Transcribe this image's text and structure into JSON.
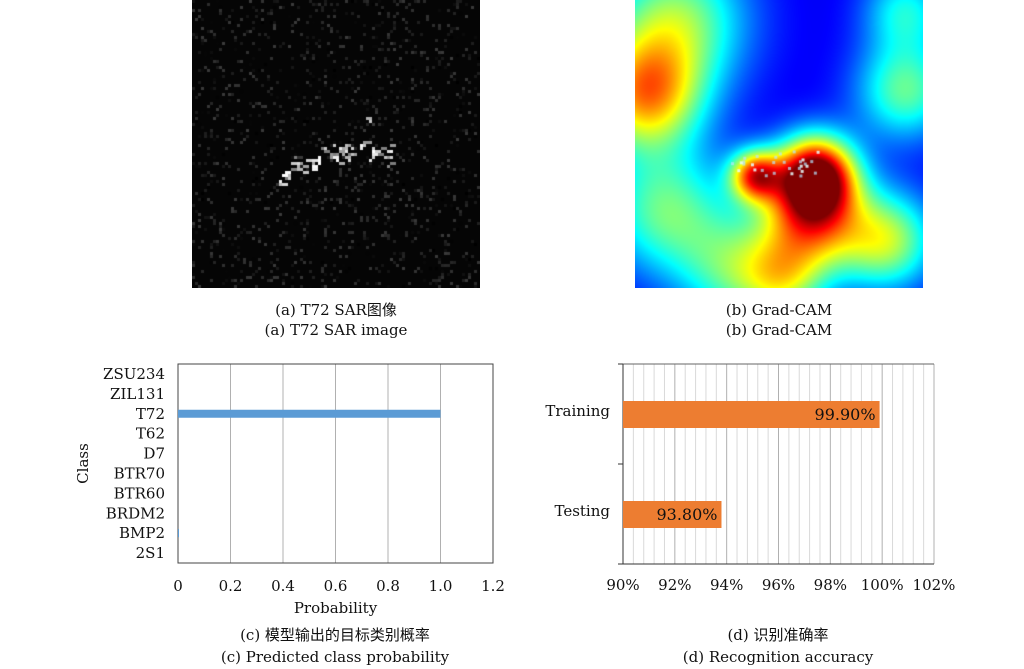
{
  "panels": {
    "a": {
      "caption_cn": "(a) T72 SAR图像",
      "caption_en": "(a) T72 SAR image"
    },
    "b": {
      "caption_cn": "(b) Grad-CAM",
      "caption_en": "(b) Grad-CAM"
    },
    "c": {
      "caption_cn": "(c) 模型输出的目标类别概率",
      "caption_en": "(c) Predicted class probability"
    },
    "d": {
      "caption_cn": "(d) 识别准确率",
      "caption_en": "(d) Recognition accuracy"
    }
  },
  "colors": {
    "prob_bar": "#5b9bd5",
    "acc_bar": "#ed7d31",
    "grid": "#b0b0b0",
    "minor_grid": "#d9d9d9"
  },
  "chart_data": [
    {
      "type": "bar",
      "orientation": "horizontal",
      "title": "",
      "xlabel": "Probability",
      "ylabel": "Class",
      "categories": [
        "ZSU234",
        "ZIL131",
        "T72",
        "T62",
        "D7",
        "BTR70",
        "BTR60",
        "BRDM2",
        "BMP2",
        "2S1"
      ],
      "values": [
        0,
        0,
        1.0,
        0,
        0,
        0,
        0,
        0,
        0.002,
        0
      ],
      "xlim": [
        0,
        1.2
      ],
      "xticks": [
        "0",
        "0.2",
        "0.4",
        "0.6",
        "0.8",
        "1.0",
        "1.2"
      ],
      "tick_values": [
        0,
        0.2,
        0.4,
        0.6,
        0.8,
        1.0,
        1.2
      ],
      "grid": true
    },
    {
      "type": "bar",
      "orientation": "horizontal",
      "title": "",
      "xlabel": "",
      "ylabel": "",
      "categories": [
        "Training",
        "Testing"
      ],
      "values": [
        99.9,
        93.8
      ],
      "data_labels": [
        "99.90%",
        "93.80%"
      ],
      "xlim": [
        90,
        102
      ],
      "xticks": [
        "90%",
        "92%",
        "94%",
        "96%",
        "98%",
        "100%",
        "102%"
      ],
      "tick_values": [
        90,
        92,
        94,
        96,
        98,
        100,
        102
      ],
      "minor_step": 0.4,
      "grid": true
    }
  ]
}
